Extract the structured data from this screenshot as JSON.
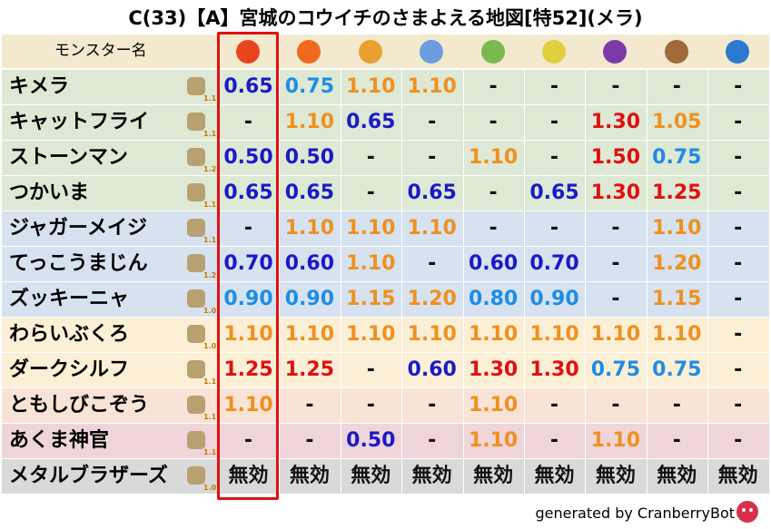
{
  "title": "C(33)【A】宮城のコウイチのさまよえる地図[特52](メラ)",
  "header": {
    "name_label": "モンスター名"
  },
  "rows": [
    {
      "name": "キメラ",
      "rank": "1.1",
      "cells": [
        "0.65",
        "0.75",
        "1.10",
        "1.10",
        "-",
        "-",
        "-",
        "-",
        "-"
      ]
    },
    {
      "name": "キャットフライ",
      "rank": "1.1",
      "cells": [
        "-",
        "1.10",
        "0.65",
        "-",
        "-",
        "-",
        "1.30",
        "1.05",
        "-"
      ]
    },
    {
      "name": "ストーンマン",
      "rank": "1.2",
      "cells": [
        "0.50",
        "0.50",
        "-",
        "-",
        "1.10",
        "-",
        "1.50",
        "0.75",
        "-"
      ]
    },
    {
      "name": "つかいま",
      "rank": "1.1",
      "cells": [
        "0.65",
        "0.65",
        "-",
        "0.65",
        "-",
        "0.65",
        "1.30",
        "1.25",
        "-"
      ]
    },
    {
      "name": "ジャガーメイジ",
      "rank": "1.1",
      "cells": [
        "-",
        "1.10",
        "1.10",
        "1.10",
        "-",
        "-",
        "-",
        "1.10",
        "-"
      ]
    },
    {
      "name": "てっこうまじん",
      "rank": "1.2",
      "cells": [
        "0.70",
        "0.60",
        "1.10",
        "-",
        "0.60",
        "0.70",
        "-",
        "1.20",
        "-"
      ]
    },
    {
      "name": "ズッキーニャ",
      "rank": "1.0",
      "cells": [
        "0.90",
        "0.90",
        "1.15",
        "1.20",
        "0.80",
        "0.90",
        "-",
        "1.15",
        "-"
      ]
    },
    {
      "name": "わらいぶくろ",
      "rank": "1.0",
      "cells": [
        "1.10",
        "1.10",
        "1.10",
        "1.10",
        "1.10",
        "1.10",
        "1.10",
        "1.10",
        "-"
      ]
    },
    {
      "name": "ダークシルフ",
      "rank": "1.1",
      "cells": [
        "1.25",
        "1.25",
        "-",
        "0.60",
        "1.30",
        "1.30",
        "0.75",
        "0.75",
        "-"
      ]
    },
    {
      "name": "ともしびこぞう",
      "rank": "1.1",
      "cells": [
        "1.10",
        "-",
        "-",
        "-",
        "1.10",
        "-",
        "-",
        "-",
        "-"
      ]
    },
    {
      "name": "あくま神官",
      "rank": "1.1",
      "cells": [
        "-",
        "-",
        "0.50",
        "-",
        "1.10",
        "-",
        "1.10",
        "-",
        "-"
      ]
    },
    {
      "name": "メタルブラザーズ",
      "rank": "1.0",
      "cells": [
        "無効",
        "無効",
        "無効",
        "無効",
        "無効",
        "無効",
        "無効",
        "無効",
        "無効"
      ]
    }
  ],
  "footer": "generated by CranberryBot"
}
